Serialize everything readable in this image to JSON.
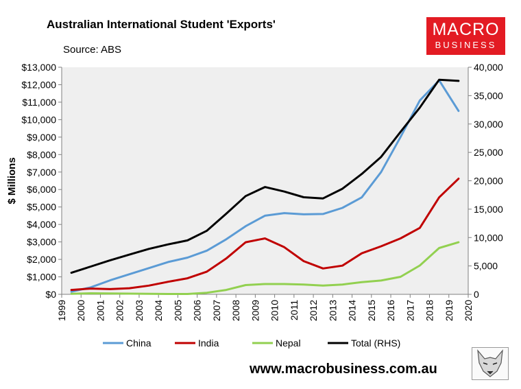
{
  "header": {
    "title": "Australian International Student 'Exports'",
    "source": "Source: ABS"
  },
  "logo": {
    "line1": "MACRO",
    "line2": "BUSINESS"
  },
  "footer": {
    "website": "www.macrobusiness.com.au"
  },
  "chart_data": {
    "type": "line",
    "ylabel": "$ Millions",
    "y_left": {
      "min": 0,
      "max": 13000,
      "step": 1000,
      "tick_labels": [
        "$0",
        "$1,000",
        "$2,000",
        "$3,000",
        "$4,000",
        "$5,000",
        "$6,000",
        "$7,000",
        "$8,000",
        "$9,000",
        "$10,000",
        "$11,000",
        "$12,000",
        "$13,000"
      ]
    },
    "y_right": {
      "min": 0,
      "max": 40000,
      "step": 5000,
      "tick_labels": [
        "0",
        "5,000",
        "10,000",
        "15,000",
        "20,000",
        "25,000",
        "30,000",
        "35,000",
        "40,000"
      ]
    },
    "x_axis": {
      "min": 1999,
      "max": 2020,
      "tick_labels": [
        "1999",
        "2000",
        "2001",
        "2002",
        "2003",
        "2004",
        "2005",
        "2006",
        "2007",
        "2008",
        "2009",
        "2010",
        "2011",
        "2012",
        "2013",
        "2014",
        "2015",
        "2016",
        "2017",
        "2018",
        "2019",
        "2020"
      ]
    },
    "x": [
      1999.5,
      2000.5,
      2001.5,
      2002.5,
      2003.5,
      2004.5,
      2005.5,
      2006.5,
      2007.5,
      2008.5,
      2009.5,
      2010.5,
      2011.5,
      2012.5,
      2013.5,
      2014.5,
      2015.5,
      2016.5,
      2017.5,
      2018.5,
      2019.5
    ],
    "series": [
      {
        "name": "China",
        "color": "#5b9bd5",
        "axis": "left",
        "values": [
          150,
          400,
          800,
          1150,
          1500,
          1850,
          2100,
          2500,
          3150,
          3900,
          4500,
          4650,
          4580,
          4600,
          4950,
          5550,
          7000,
          9000,
          11100,
          12250,
          10500
        ]
      },
      {
        "name": "India",
        "color": "#c00000",
        "axis": "left",
        "values": [
          250,
          330,
          300,
          350,
          500,
          720,
          920,
          1300,
          2050,
          2980,
          3200,
          2700,
          1900,
          1480,
          1640,
          2350,
          2750,
          3200,
          3800,
          5550,
          6620
        ]
      },
      {
        "name": "Nepal",
        "color": "#92d050",
        "axis": "left",
        "values": [
          30,
          60,
          50,
          40,
          30,
          20,
          20,
          90,
          250,
          530,
          590,
          590,
          560,
          500,
          560,
          700,
          790,
          1000,
          1650,
          2650,
          2980
        ]
      },
      {
        "name": "Total (RHS)",
        "color": "#000000",
        "axis": "right",
        "values": [
          3800,
          4900,
          6000,
          7000,
          8000,
          8800,
          9500,
          11200,
          14200,
          17300,
          18900,
          18100,
          17100,
          16900,
          18600,
          21200,
          24200,
          28600,
          32900,
          37800,
          37600
        ]
      }
    ],
    "legend_position": "bottom",
    "grid": false
  }
}
